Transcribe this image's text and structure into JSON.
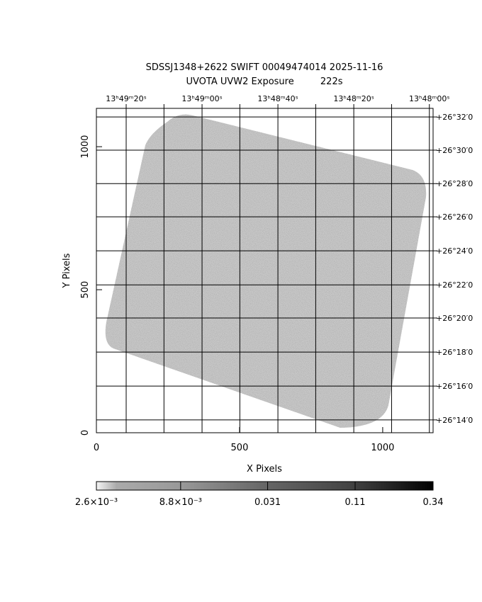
{
  "chart_data": {
    "type": "image",
    "title": "SDSSJ1348+2622 SWIFT 00049474014 2025-11-16",
    "subtitle": "UVOTA UVW2 Exposure         222s",
    "xlabel": "X Pixels",
    "ylabel": "Y Pixels",
    "xlim": [
      0,
      1176
    ],
    "ylim": [
      0,
      1134
    ],
    "xticks": [
      0,
      500,
      1000
    ],
    "yticks": [
      0,
      500,
      1000
    ],
    "x2ticks": [
      {
        "value": 104,
        "label": "13ʰ49ᵐ20ˢ"
      },
      {
        "value": 236,
        "label": null
      },
      {
        "value": 369,
        "label": "13ʰ49ᵐ00ˢ"
      },
      {
        "value": 501,
        "label": null
      },
      {
        "value": 634,
        "label": "13ʰ48ᵐ40ˢ"
      },
      {
        "value": 766,
        "label": null
      },
      {
        "value": 899,
        "label": "13ʰ48ᵐ20ˢ"
      },
      {
        "value": 1031,
        "label": null
      },
      {
        "value": 1163,
        "label": "13ʰ48ᵐ00ˢ"
      }
    ],
    "y2ticks": [
      {
        "value": 1104,
        "label": "+26°32′0"
      },
      {
        "value": 988,
        "label": "+26°30′0"
      },
      {
        "value": 871,
        "label": "+26°28′0"
      },
      {
        "value": 755,
        "label": "+26°26′0"
      },
      {
        "value": 636,
        "label": "+26°24′0"
      },
      {
        "value": 517,
        "label": "+26°22′0"
      },
      {
        "value": 401,
        "label": "+26°20′0"
      },
      {
        "value": 282,
        "label": "+26°18′0"
      },
      {
        "value": 163,
        "label": "+26°16′0"
      },
      {
        "value": 45,
        "label": "+26°14′0"
      }
    ],
    "colorbar": {
      "lim": [
        0.0026,
        0.34
      ],
      "log": true,
      "ticks": [
        {
          "value": 0.0026,
          "label": "2.6×10⁻³"
        },
        {
          "value": 0.0088,
          "label": "8.8×10⁻³"
        },
        {
          "value": 0.031,
          "label": "0.031"
        },
        {
          "value": 0.11,
          "label": "0.11"
        },
        {
          "value": 0.34,
          "label": "0.34"
        }
      ]
    }
  }
}
